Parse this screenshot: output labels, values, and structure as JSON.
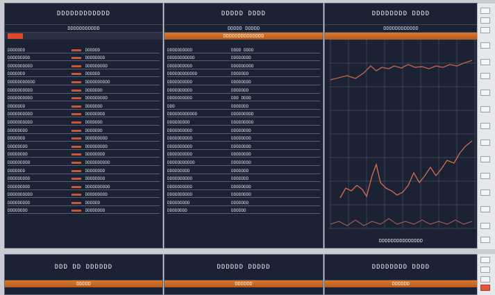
{
  "panels": [
    {
      "title": "DDDDDDDDDDDD",
      "subtitle": "DDDDDDDDDDD",
      "rows": [
        [
          "DDDDDDD",
          "DDDDDD"
        ],
        [
          "DDDDDDDDD",
          "DDDDDDDD"
        ],
        [
          "DDDDDDDDDD",
          "DDDDDDDDD"
        ],
        [
          "DDDDDDD",
          "DDDDDD"
        ],
        [
          "DDDDDDDDDDD",
          "DDDDDDDDDD"
        ],
        [
          "DDDDDDDDDD",
          "DDDDDDD"
        ],
        [
          "DDDDDDDDDD",
          "DDDDDDDDD"
        ],
        [
          "DDDDDDD",
          "DDDDDDD"
        ],
        [
          "DDDDDDDDDD",
          "DDDDDDDD"
        ],
        [
          "DDDDDDDDDD",
          "DDDDDDD"
        ],
        [
          "DDDDDDDD",
          "DDDDDDD"
        ],
        [
          "DDDDDDD",
          "DDDDDDDDD"
        ],
        [
          "DDDDDDDD",
          "DDDDDDDDD"
        ],
        [
          "DDDDDDDD",
          "DDDDDDDD"
        ],
        [
          "DDDDDDDDD",
          "DDDDDDDDDD"
        ],
        [
          "DDDDDDD",
          "DDDDDDDD"
        ],
        [
          "DDDDDDDDD",
          "DDDDDDDD"
        ],
        [
          "DDDDDDDDD",
          "DDDDDDDDDD"
        ],
        [
          "DDDDDDDDDD",
          "DDDDDDDDD"
        ],
        [
          "DDDDDDDDD",
          "DDDDDD"
        ],
        [
          "DDDDDDDD",
          "DDDDDDDD"
        ]
      ]
    },
    {
      "title": "DDDDD DDDD",
      "subtitle": "DDDDD DDDDD",
      "bar_label": "DDDDDDDDDDDDDD",
      "rows": [
        [
          "DDDDDDDDDD",
          "DDDD DDDD"
        ],
        [
          "DDDDDDDDDDD",
          "DDDDDDDD"
        ],
        [
          "DDDDDDDDDD",
          "DDDDDDDDD"
        ],
        [
          "DDDDDDDDDDDD",
          "DDDDDDD"
        ],
        [
          "DDDDDDDDDD",
          "DDDDDDDD"
        ],
        [
          "DDDDDDDDDD",
          "DDDDDDD"
        ],
        [
          "DDDDDDDDDD",
          "DDD DDDD"
        ],
        [
          "DDD",
          "DDDDDDD"
        ],
        [
          "DDDDDDDDDDDD",
          "DDDDDDDDD"
        ],
        [
          "DDDDDDDDD",
          "DDDDDDDDD"
        ],
        [
          "DDDDDDDDDD",
          "DDDDDDDD"
        ],
        [
          "DDDDDDDDDD",
          "DDDDDDDD"
        ],
        [
          "DDDDDDDDDD",
          "DDDDDDDD"
        ],
        [
          "DDDDDDDDDD",
          "DDDDDDDD"
        ],
        [
          "DDDDDDDDDDD",
          "DDDDDDDD"
        ],
        [
          "DDDDDDDDD",
          "DDDDDDD"
        ],
        [
          "DDDDDDDDDD",
          "DDDDDDD"
        ],
        [
          "DDDDDDDDDD",
          "DDDDDDDD"
        ],
        [
          "DDDDDDDDDD",
          "DDDDDDDD"
        ],
        [
          "DDDDDDDDD",
          "DDDDDDD"
        ],
        [
          "DDDDDDDD",
          "DDDDDD"
        ]
      ]
    },
    {
      "title": "DDDDDDDD DDDD",
      "subtitle": "DDDDDDDDDDDD",
      "footer": "DDDDDDDDDDDDDDD"
    },
    {
      "title": "DDD DD DDDDDD",
      "bar_label": "DDDDD"
    },
    {
      "title": "DDDDDD DDDDD",
      "bar_label": "DDDDDD"
    },
    {
      "title": "DDDDDDDD DDDD",
      "bar_label": "DDDDDD"
    }
  ]
}
